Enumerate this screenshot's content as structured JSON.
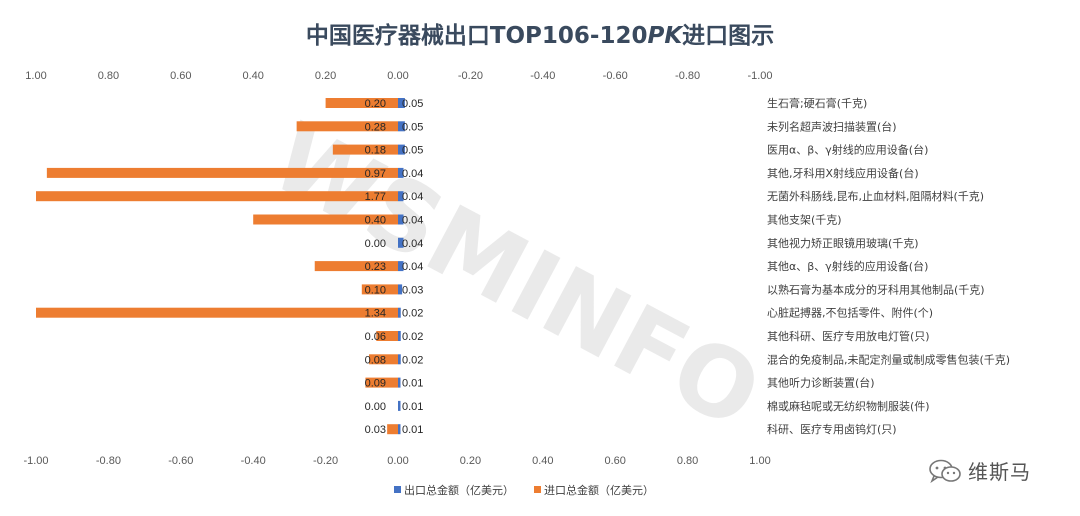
{
  "title_main": "中国医疗器械出口TOP106-120",
  "title_pk": "PK",
  "title_tail": "进口图示",
  "watermark": "WSMINFO",
  "brand": {
    "name": "维斯马",
    "icon": "wechat-icon"
  },
  "chart_data": {
    "type": "bar",
    "orientation": "horizontal",
    "axis_reversed": true,
    "xlim": [
      -1.0,
      1.0
    ],
    "top_ticks": [
      "1.00",
      "0.80",
      "0.60",
      "0.40",
      "0.20",
      "0.00",
      "-0.20",
      "-0.40",
      "-0.60",
      "-0.80",
      "-1.00"
    ],
    "bottom_ticks": [
      "-1.00",
      "-0.80",
      "-0.60",
      "-0.40",
      "-0.20",
      "0.00",
      "0.20",
      "0.40",
      "0.60",
      "0.80",
      "1.00"
    ],
    "categories": [
      "生石膏;硬石膏(千克)",
      "未列名超声波扫描装置(台)",
      "医用α、β、γ射线的应用设备(台)",
      "其他,牙科用X射线应用设备(台)",
      "无菌外科肠线,昆布,止血材料,阻隔材料(千克)",
      "其他支架(千克)",
      "其他视力矫正眼镜用玻璃(千克)",
      "其他α、β、γ射线的应用设备(台)",
      "以熟石膏为基本成分的牙科用其他制品(千克)",
      "心脏起搏器,不包括零件、附件(个)",
      "其他科研、医疗专用放电灯管(只)",
      "混合的免疫制品,未配定剂量或制成零售包装(千克)",
      "其他听力诊断装置(台)",
      "棉或麻毡呢或无纺织物制服装(件)",
      "科研、医疗专用卤钨灯(只)"
    ],
    "series": [
      {
        "name": "出口总金额（亿美元）",
        "color": "#4472c4",
        "values": [
          0.05,
          0.05,
          0.05,
          0.04,
          0.04,
          0.04,
          0.04,
          0.04,
          0.03,
          0.02,
          0.02,
          0.02,
          0.01,
          0.01,
          0.01
        ],
        "labels": [
          "0.05",
          "0.05",
          "0.05",
          "0.04",
          "0.04",
          "0.04",
          "0.04",
          "0.04",
          "0.03",
          "0.02",
          "0.02",
          "0.02",
          "0.01",
          "0.01",
          "0.01"
        ]
      },
      {
        "name": "进口总金额（亿美元）",
        "color": "#ed7d31",
        "values": [
          0.2,
          0.28,
          0.18,
          0.97,
          1.77,
          0.4,
          0.0,
          0.23,
          0.1,
          1.34,
          0.06,
          0.08,
          0.09,
          0.0,
          0.03
        ],
        "labels": [
          "0.20",
          "0.28",
          "0.18",
          "0.97",
          "1.77",
          "0.40",
          "0.00",
          "0.23",
          "0.10",
          "1.34",
          "0.06",
          "0.08",
          "0.09",
          "0.00",
          "0.03"
        ]
      }
    ],
    "legend_position": "bottom",
    "grid": false
  }
}
